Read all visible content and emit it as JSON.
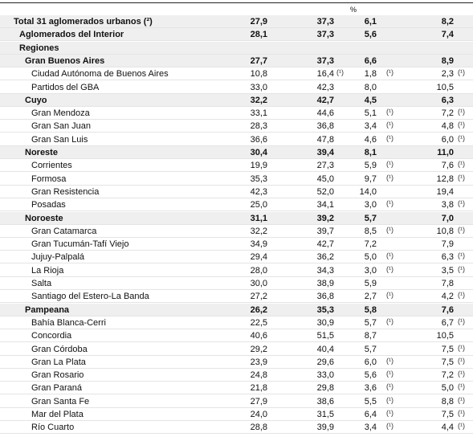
{
  "table": {
    "header": "%",
    "rows": [
      {
        "label": "Total 31 aglomerados urbanos (²)",
        "level": 0,
        "bold": true,
        "cells": [
          {
            "text": "27,9"
          },
          {
            "text": "37,3"
          },
          {
            "text": "6,1"
          },
          {
            "text": "8,2"
          }
        ]
      },
      {
        "label": "Aglomerados del Interior",
        "level": 1,
        "bold": true,
        "cells": [
          {
            "text": "28,1"
          },
          {
            "text": "37,3"
          },
          {
            "text": "5,6"
          },
          {
            "text": "7,4"
          }
        ]
      },
      {
        "label": "Regiones",
        "level": 1,
        "bold": true,
        "cells": []
      },
      {
        "label": "Gran Buenos Aires",
        "level": 2,
        "bold": true,
        "cells": [
          {
            "text": "27,7"
          },
          {
            "text": "37,3"
          },
          {
            "text": "6,6"
          },
          {
            "text": "8,9"
          }
        ]
      },
      {
        "label": "Ciudad Autónoma de Buenos Aires",
        "level": 3,
        "bold": false,
        "cells": [
          {
            "text": "10,8"
          },
          {
            "text": "16,4",
            "note": "(¹)"
          },
          {
            "text": "1,8",
            "note": "(¹)"
          },
          {
            "text": "2,3",
            "note": "(¹)"
          }
        ]
      },
      {
        "label": "Partidos del GBA",
        "level": 3,
        "bold": false,
        "cells": [
          {
            "text": "33,0"
          },
          {
            "text": "42,3"
          },
          {
            "text": "8,0"
          },
          {
            "text": "10,5"
          }
        ]
      },
      {
        "label": "Cuyo",
        "level": 2,
        "bold": true,
        "cells": [
          {
            "text": "32,2"
          },
          {
            "text": "42,7"
          },
          {
            "text": "4,5"
          },
          {
            "text": "6,3"
          }
        ]
      },
      {
        "label": "Gran Mendoza",
        "level": 3,
        "bold": false,
        "cells": [
          {
            "text": "33,1"
          },
          {
            "text": "44,6"
          },
          {
            "text": "5,1",
            "note": "(¹)"
          },
          {
            "text": "7,2",
            "note": "(¹)"
          }
        ]
      },
      {
        "label": "Gran San Juan",
        "level": 3,
        "bold": false,
        "cells": [
          {
            "text": "28,3"
          },
          {
            "text": "36,8"
          },
          {
            "text": "3,4",
            "note": "(¹)"
          },
          {
            "text": "4,8",
            "note": "(¹)"
          }
        ]
      },
      {
        "label": "Gran San Luis",
        "level": 3,
        "bold": false,
        "cells": [
          {
            "text": "36,6"
          },
          {
            "text": "47,8"
          },
          {
            "text": "4,6",
            "note": "(¹)"
          },
          {
            "text": "6,0",
            "note": "(¹)"
          }
        ]
      },
      {
        "label": "Noreste",
        "level": 2,
        "bold": true,
        "cells": [
          {
            "text": "30,4"
          },
          {
            "text": "39,4"
          },
          {
            "text": "8,1"
          },
          {
            "text": "11,0"
          }
        ]
      },
      {
        "label": "Corrientes",
        "level": 3,
        "bold": false,
        "cells": [
          {
            "text": "19,9"
          },
          {
            "text": "27,3"
          },
          {
            "text": "5,9",
            "note": "(¹)"
          },
          {
            "text": "7,6",
            "note": "(¹)"
          }
        ]
      },
      {
        "label": "Formosa",
        "level": 3,
        "bold": false,
        "cells": [
          {
            "text": "35,3"
          },
          {
            "text": "45,0"
          },
          {
            "text": "9,7",
            "note": "(¹)"
          },
          {
            "text": "12,8",
            "note": "(¹)"
          }
        ]
      },
      {
        "label": "Gran Resistencia",
        "level": 3,
        "bold": false,
        "cells": [
          {
            "text": "42,3"
          },
          {
            "text": "52,0"
          },
          {
            "text": "14,0"
          },
          {
            "text": "19,4"
          }
        ]
      },
      {
        "label": "Posadas",
        "level": 3,
        "bold": false,
        "cells": [
          {
            "text": "25,0"
          },
          {
            "text": "34,1"
          },
          {
            "text": "3,0",
            "note": "(¹)"
          },
          {
            "text": "3,8",
            "note": "(¹)"
          }
        ]
      },
      {
        "label": "Noroeste",
        "level": 2,
        "bold": true,
        "cells": [
          {
            "text": "31,1"
          },
          {
            "text": "39,2"
          },
          {
            "text": "5,7"
          },
          {
            "text": "7,0"
          }
        ]
      },
      {
        "label": "Gran Catamarca",
        "level": 3,
        "bold": false,
        "cells": [
          {
            "text": "32,2"
          },
          {
            "text": "39,7"
          },
          {
            "text": "8,5",
            "note": "(¹)"
          },
          {
            "text": "10,8",
            "note": "(¹)"
          }
        ]
      },
      {
        "label": "Gran Tucumán-Tafí Viejo",
        "level": 3,
        "bold": false,
        "cells": [
          {
            "text": "34,9"
          },
          {
            "text": "42,7"
          },
          {
            "text": "7,2"
          },
          {
            "text": "7,9"
          }
        ]
      },
      {
        "label": "Jujuy-Palpalá",
        "level": 3,
        "bold": false,
        "cells": [
          {
            "text": "29,4"
          },
          {
            "text": "36,2"
          },
          {
            "text": "5,0",
            "note": "(¹)"
          },
          {
            "text": "6,3",
            "note": "(¹)"
          }
        ]
      },
      {
        "label": "La Rioja",
        "level": 3,
        "bold": false,
        "cells": [
          {
            "text": "28,0"
          },
          {
            "text": "34,3"
          },
          {
            "text": "3,0",
            "note": "(¹)"
          },
          {
            "text": "3,5",
            "note": "(¹)"
          }
        ]
      },
      {
        "label": "Salta",
        "level": 3,
        "bold": false,
        "cells": [
          {
            "text": "30,0"
          },
          {
            "text": "38,9"
          },
          {
            "text": "5,9"
          },
          {
            "text": "7,8"
          }
        ]
      },
      {
        "label": "Santiago del Estero-La Banda",
        "level": 3,
        "bold": false,
        "cells": [
          {
            "text": "27,2"
          },
          {
            "text": "36,8"
          },
          {
            "text": "2,7",
            "note": "(¹)"
          },
          {
            "text": "4,2",
            "note": "(¹)"
          }
        ]
      },
      {
        "label": "Pampeana",
        "level": 2,
        "bold": true,
        "cells": [
          {
            "text": "26,2"
          },
          {
            "text": "35,3"
          },
          {
            "text": "5,8"
          },
          {
            "text": "7,6"
          }
        ]
      },
      {
        "label": "Bahía Blanca-Cerri",
        "level": 3,
        "bold": false,
        "cells": [
          {
            "text": "22,5"
          },
          {
            "text": "30,9"
          },
          {
            "text": "5,7",
            "note": "(¹)"
          },
          {
            "text": "6,7",
            "note": "(¹)"
          }
        ]
      },
      {
        "label": "Concordia",
        "level": 3,
        "bold": false,
        "cells": [
          {
            "text": "40,6"
          },
          {
            "text": "51,5"
          },
          {
            "text": "8,7"
          },
          {
            "text": "10,5"
          }
        ]
      },
      {
        "label": "Gran Córdoba",
        "level": 3,
        "bold": false,
        "cells": [
          {
            "text": "29,2"
          },
          {
            "text": "40,4"
          },
          {
            "text": "5,7"
          },
          {
            "text": "7,5",
            "note": "(¹)"
          }
        ]
      },
      {
        "label": "Gran La Plata",
        "level": 3,
        "bold": false,
        "cells": [
          {
            "text": "23,9"
          },
          {
            "text": "29,6"
          },
          {
            "text": "6,0",
            "note": "(¹)"
          },
          {
            "text": "7,5",
            "note": "(¹)"
          }
        ]
      },
      {
        "label": "Gran Rosario",
        "level": 3,
        "bold": false,
        "cells": [
          {
            "text": "24,8"
          },
          {
            "text": "33,0"
          },
          {
            "text": "5,6",
            "note": "(¹)"
          },
          {
            "text": "7,2",
            "note": "(¹)"
          }
        ]
      },
      {
        "label": "Gran Paraná",
        "level": 3,
        "bold": false,
        "cells": [
          {
            "text": "21,8"
          },
          {
            "text": "29,8"
          },
          {
            "text": "3,6",
            "note": "(¹)"
          },
          {
            "text": "5,0",
            "note": "(¹)"
          }
        ]
      },
      {
        "label": "Gran Santa Fe",
        "level": 3,
        "bold": false,
        "cells": [
          {
            "text": "27,9"
          },
          {
            "text": "38,6"
          },
          {
            "text": "5,5",
            "note": "(¹)"
          },
          {
            "text": "8,8",
            "note": "(¹)"
          }
        ]
      },
      {
        "label": "Mar del Plata",
        "level": 3,
        "bold": false,
        "cells": [
          {
            "text": "24,0"
          },
          {
            "text": "31,5"
          },
          {
            "text": "6,4",
            "note": "(¹)"
          },
          {
            "text": "7,5",
            "note": "(¹)"
          }
        ]
      },
      {
        "label": "Río Cuarto",
        "level": 3,
        "bold": false,
        "cells": [
          {
            "text": "28,8"
          },
          {
            "text": "39,9"
          },
          {
            "text": "3,4",
            "note": "(¹)"
          },
          {
            "text": "4,4",
            "note": "(¹)"
          }
        ]
      }
    ]
  }
}
